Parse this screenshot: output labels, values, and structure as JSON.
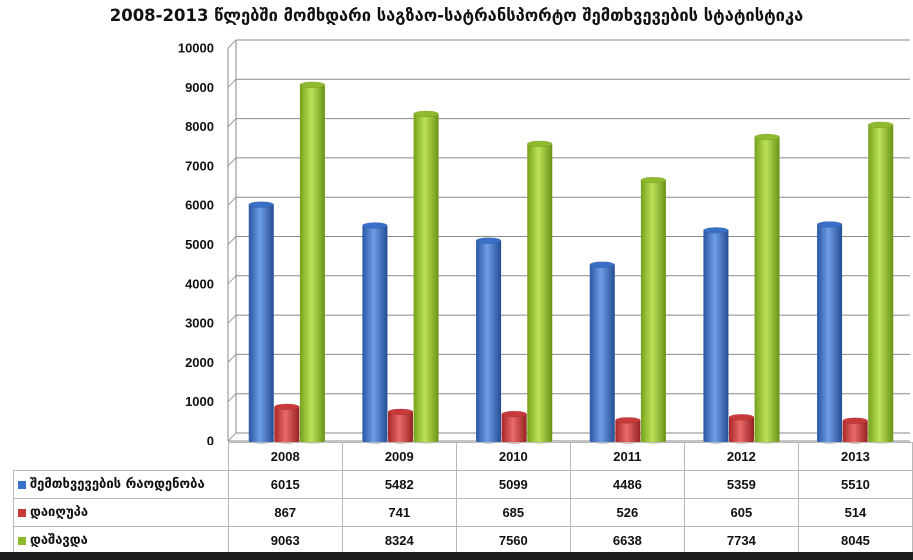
{
  "chart_data": {
    "type": "bar",
    "title": "2008-2013 წლებში მომხდარი საგზაო-სატრანსპორტო შემთხვევების სტატისტიკა",
    "categories": [
      "2008",
      "2009",
      "2010",
      "2011",
      "2012",
      "2013"
    ],
    "series": [
      {
        "name": "შემთხვევების რაოდენობა",
        "values": [
          6015,
          5482,
          5099,
          4486,
          5359,
          5510
        ],
        "color": "#3a6fc8"
      },
      {
        "name": "დაიღუპა",
        "values": [
          867,
          741,
          685,
          526,
          605,
          514
        ],
        "color": "#c83a3a"
      },
      {
        "name": "დაშავდა",
        "values": [
          9063,
          8324,
          7560,
          6638,
          7734,
          8045
        ],
        "color": "#8fba2e"
      }
    ],
    "ylim": [
      0,
      10000
    ],
    "yticks": [
      0,
      1000,
      2000,
      3000,
      4000,
      5000,
      6000,
      7000,
      8000,
      9000,
      10000
    ],
    "grid": true,
    "legend": "data-table-below",
    "style": "3d-cylinder"
  }
}
